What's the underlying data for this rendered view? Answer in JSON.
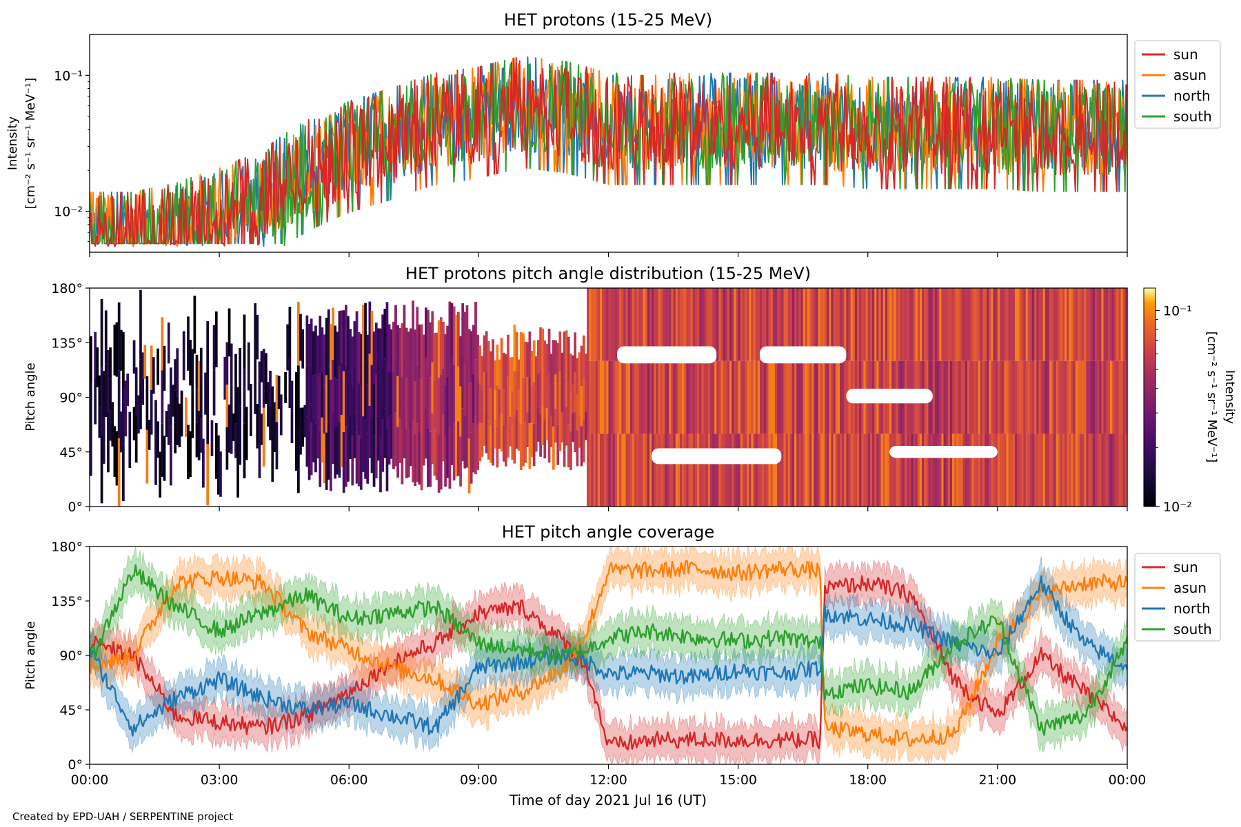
{
  "footer": "Created by EPD-UAH / SERPENTINE project",
  "colors": {
    "sun": "#d62728",
    "asun": "#ff7f0e",
    "north": "#1f77b4",
    "south": "#2ca02c"
  },
  "chart_data": [
    {
      "type": "line",
      "title": "HET protons (15-25 MeV)",
      "ylabel_line1": "Intensity",
      "ylabel_line2": "[cm⁻² s⁻¹ sr⁻¹ MeV⁻¹]",
      "yscale": "log",
      "ylim": [
        0.005,
        0.2
      ],
      "yticks": [
        {
          "value": 0.01,
          "label": "10⁻²"
        },
        {
          "value": 0.1,
          "label": "10⁻¹"
        }
      ],
      "xlim_hours": [
        0,
        24
      ],
      "legend": "outside-right-top",
      "series": [
        {
          "name": "sun",
          "key": "sun"
        },
        {
          "name": "asun",
          "key": "asun"
        },
        {
          "name": "north",
          "key": "north"
        },
        {
          "name": "south",
          "key": "south"
        }
      ],
      "profile_note": "flux",
      "x_hours": [
        0,
        1,
        2,
        3,
        4,
        5,
        6,
        7,
        8,
        9,
        10,
        11,
        12,
        13,
        14,
        15,
        16,
        17,
        18,
        19,
        20,
        21,
        22,
        23,
        24
      ],
      "typical_y": [
        0.006,
        0.006,
        0.007,
        0.009,
        0.012,
        0.02,
        0.028,
        0.035,
        0.045,
        0.05,
        0.06,
        0.055,
        0.045,
        0.045,
        0.045,
        0.045,
        0.045,
        0.045,
        0.042,
        0.042,
        0.042,
        0.042,
        0.04,
        0.04,
        0.04
      ]
    },
    {
      "type": "heatmap",
      "title": "HET protons pitch angle distribution (15-25 MeV)",
      "ylabel": "Pitch angle",
      "ylim": [
        0,
        180
      ],
      "yticks": [
        "0°",
        "45°",
        "90°",
        "135°",
        "180°"
      ],
      "xlim_hours": [
        0,
        24
      ],
      "colorbar": {
        "label_line1": "Intensity",
        "label_line2": "[cm⁻² s⁻¹ sr⁻¹ MeV⁻¹]",
        "scale": "log",
        "range": [
          0.01,
          0.13
        ],
        "ticks": [
          {
            "value": 0.01,
            "label": "10⁻²"
          },
          {
            "value": 0.1,
            "label": "10⁻¹"
          }
        ],
        "colormap": "inferno"
      }
    },
    {
      "type": "area",
      "title": "HET pitch angle coverage",
      "ylabel": "Pitch angle",
      "ylim": [
        0,
        180
      ],
      "yticks": [
        "0°",
        "45°",
        "90°",
        "135°",
        "180°"
      ],
      "xlabel": "Time of day 2021 Jul 16 (UT)",
      "xticks": [
        "00:00",
        "03:00",
        "06:00",
        "09:00",
        "12:00",
        "15:00",
        "18:00",
        "21:00",
        "00:00"
      ],
      "xlim_hours": [
        0,
        24
      ],
      "legend": "outside-right-top",
      "series": [
        {
          "name": "sun",
          "key": "sun",
          "x": [
            0,
            1,
            2,
            3,
            4,
            5,
            6,
            7,
            8,
            9,
            10,
            11,
            11.5,
            12,
            13,
            14,
            15,
            16,
            16.9,
            17,
            18,
            19,
            20,
            21,
            22,
            23,
            24
          ],
          "y": [
            100,
            90,
            40,
            35,
            30,
            40,
            60,
            85,
            100,
            125,
            130,
            100,
            80,
            15,
            20,
            20,
            20,
            20,
            20,
            145,
            150,
            140,
            70,
            40,
            90,
            60,
            30
          ],
          "half_width": 15
        },
        {
          "name": "asun",
          "key": "asun",
          "x": [
            0,
            1,
            2,
            3,
            4,
            5,
            6,
            7,
            8,
            9,
            10,
            11,
            11.5,
            12,
            13,
            14,
            15,
            16,
            16.9,
            17,
            18,
            19,
            20,
            21,
            22,
            23,
            24
          ],
          "y": [
            80,
            90,
            150,
            155,
            150,
            110,
            95,
            80,
            70,
            50,
            60,
            80,
            110,
            160,
            160,
            162,
            158,
            162,
            160,
            30,
            25,
            20,
            25,
            100,
            140,
            150,
            150
          ],
          "half_width": 15
        },
        {
          "name": "north",
          "key": "north",
          "x": [
            0,
            1,
            2,
            3,
            4,
            5,
            6,
            7,
            8,
            9,
            10,
            11,
            11.5,
            12,
            13,
            14,
            15,
            16,
            16.9,
            17,
            18,
            19,
            20,
            21,
            22,
            23,
            24
          ],
          "y": [
            95,
            30,
            55,
            70,
            55,
            45,
            50,
            40,
            30,
            80,
            85,
            90,
            85,
            75,
            75,
            72,
            78,
            75,
            80,
            125,
            120,
            115,
            100,
            90,
            150,
            100,
            80
          ],
          "half_width": 15
        },
        {
          "name": "south",
          "key": "south",
          "x": [
            0,
            1,
            2,
            3,
            4,
            5,
            6,
            7,
            8,
            9,
            10,
            11,
            11.5,
            12,
            13,
            14,
            15,
            16,
            16.9,
            17,
            18,
            19,
            20,
            21,
            22,
            23,
            24
          ],
          "y": [
            85,
            160,
            130,
            110,
            125,
            140,
            120,
            125,
            130,
            100,
            95,
            90,
            95,
            105,
            110,
            105,
            102,
            105,
            100,
            60,
            65,
            60,
            100,
            120,
            30,
            40,
            100
          ],
          "half_width": 15
        }
      ]
    }
  ]
}
